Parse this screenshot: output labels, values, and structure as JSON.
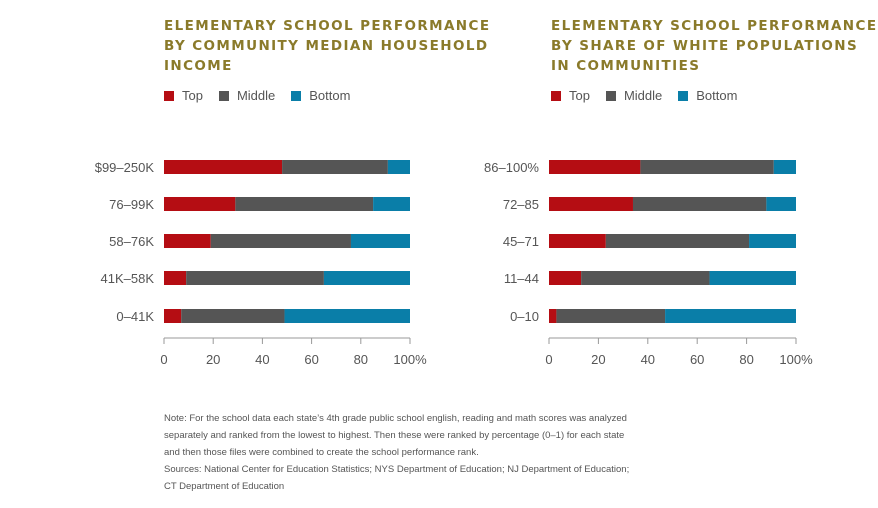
{
  "colors": {
    "top": "#b50d13",
    "middle": "#555555",
    "bottom": "#0a7ea8",
    "title": "#8a7a2a",
    "axis": "#999999"
  },
  "chart_data": [
    {
      "type": "bar",
      "orientation": "horizontal",
      "stacked": true,
      "title": "ELEMENTARY SCHOOL PERFORMANCE BY COMMUNITY MEDIAN HOUSEHOLD INCOME",
      "categories": [
        "$99–250K",
        "76–99K",
        "58–76K",
        "41K–58K",
        "0–41K"
      ],
      "series": [
        {
          "name": "Top",
          "values": [
            48,
            29,
            19,
            9,
            7
          ]
        },
        {
          "name": "Middle",
          "values": [
            43,
            56,
            57,
            56,
            42
          ]
        },
        {
          "name": "Bottom",
          "values": [
            9,
            15,
            24,
            35,
            51
          ]
        }
      ],
      "xticks": [
        "0",
        "20",
        "40",
        "60",
        "80",
        "100%"
      ],
      "xlim": [
        0,
        100
      ],
      "legend_position": "top-left",
      "grid": false
    },
    {
      "type": "bar",
      "orientation": "horizontal",
      "stacked": true,
      "title": "ELEMENTARY SCHOOL PERFORMANCE BY SHARE OF WHITE POPULATIONS IN COMMUNITIES",
      "categories": [
        "86–100%",
        "72–85",
        "45–71",
        "11–44",
        "0–10"
      ],
      "series": [
        {
          "name": "Top",
          "values": [
            37,
            34,
            23,
            13,
            3
          ]
        },
        {
          "name": "Middle",
          "values": [
            54,
            54,
            58,
            52,
            44
          ]
        },
        {
          "name": "Bottom",
          "values": [
            9,
            12,
            19,
            35,
            53
          ]
        }
      ],
      "xticks": [
        "0",
        "20",
        "40",
        "60",
        "80",
        "100%"
      ],
      "xlim": [
        0,
        100
      ],
      "legend_position": "top-left",
      "grid": false
    }
  ],
  "note": {
    "line1": "Note: For the school data each state’s 4th grade public school english, reading and math scores was analyzed",
    "line2": "separately and ranked from the lowest to highest. Then these were ranked by percentage (0–1) for each state",
    "line3": "and then those files were combined to create the school performance rank.",
    "line4": "Sources: National Center for Education Statistics; NYS Department of Education; NJ Department of Education;",
    "line5": "CT Department of Education"
  }
}
